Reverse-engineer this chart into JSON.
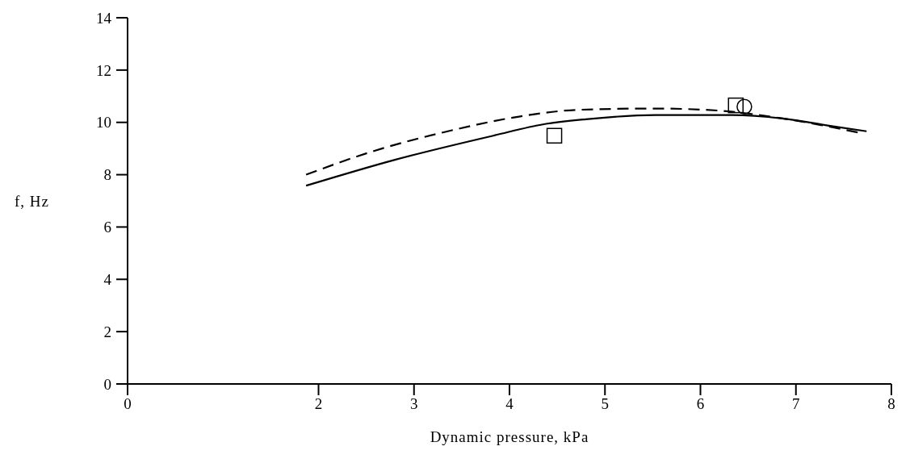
{
  "chart_data": {
    "type": "line",
    "xlabel": "Dynamic pressure, kPa",
    "ylabel": "f, Hz",
    "xlim": [
      0,
      8
    ],
    "xticks": [
      0,
      2,
      3,
      4,
      5,
      6,
      7,
      8
    ],
    "ylim": [
      0,
      14
    ],
    "yticks": [
      0,
      2,
      4,
      6,
      8,
      10,
      12,
      14
    ],
    "grid": false,
    "series": [
      {
        "color": "#000000",
        "line_style": "solid",
        "x": [
          1.87,
          2.8,
          3.84,
          4.36,
          4.8,
          5.53,
          6.33,
          6.86,
          7.39,
          7.74
        ],
        "values": [
          7.58,
          8.57,
          9.5,
          9.93,
          10.12,
          10.28,
          10.28,
          10.15,
          9.85,
          9.66
        ]
      },
      {
        "color": "#000000",
        "line_style": "dashed",
        "x": [
          1.87,
          2.53,
          3.32,
          4.1,
          4.72,
          5.53,
          6.19,
          6.86,
          7.71
        ],
        "values": [
          8.0,
          8.85,
          9.63,
          10.22,
          10.48,
          10.53,
          10.45,
          10.15,
          9.57
        ]
      },
      {
        "type": "scatter",
        "color": "#000000",
        "marker": "square",
        "x": [
          4.47,
          6.37
        ],
        "values": [
          9.49,
          10.65
        ]
      },
      {
        "type": "scatter",
        "color": "#000000",
        "marker": "circle",
        "x": [
          6.46
        ],
        "values": [
          10.6
        ]
      }
    ]
  }
}
